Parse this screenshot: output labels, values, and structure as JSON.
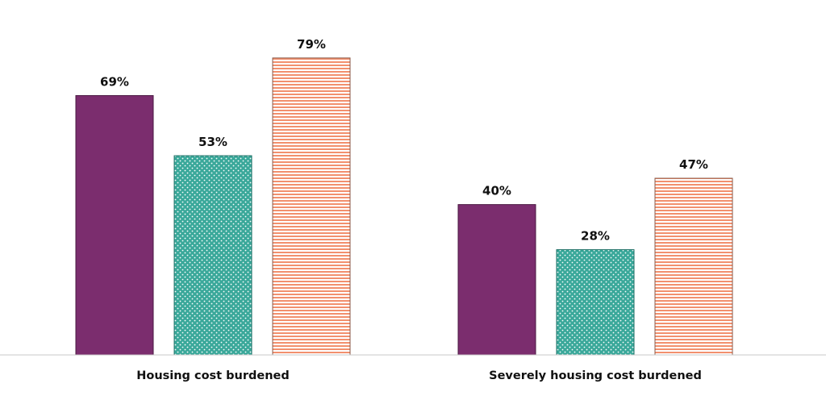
{
  "chart_data": {
    "type": "bar",
    "categories": [
      "Housing cost burdened",
      "Severely housing cost burdened"
    ],
    "series": [
      {
        "values": [
          69,
          40
        ],
        "color": "#7b2d6e",
        "stroke": "#4a1a42",
        "pattern": "solid"
      },
      {
        "values": [
          53,
          28
        ],
        "color": "#3aa89a",
        "stroke": "#1f6f66",
        "pattern": "dots"
      },
      {
        "values": [
          79,
          47
        ],
        "color": "#f2906e",
        "stroke": "#8a5a4a",
        "pattern": "horizontal-lines"
      }
    ],
    "value_suffix": "%",
    "ylim": [
      0,
      100
    ],
    "grid": false,
    "legend": "none",
    "title": "",
    "xlabel": "",
    "ylabel": ""
  }
}
